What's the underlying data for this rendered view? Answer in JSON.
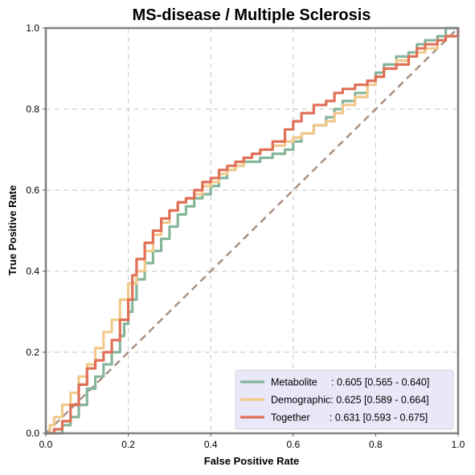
{
  "chart_data": {
    "type": "line",
    "title": "MS-disease / Multiple Sclerosis",
    "xlabel": "False Positive Rate",
    "ylabel": "True Positive Rate",
    "xlim": [
      0,
      1
    ],
    "ylim": [
      0,
      1
    ],
    "xticks": [
      "0.0",
      "0.2",
      "0.4",
      "0.6",
      "0.8",
      "1.0"
    ],
    "yticks": [
      "0.0",
      "0.2",
      "0.4",
      "0.6",
      "0.8",
      "1.0"
    ],
    "grid": true,
    "legend_position": "lower-right",
    "legend_bg": "#e8e8f8",
    "diagonal": {
      "x": [
        0,
        1
      ],
      "y": [
        0,
        1
      ],
      "style": "dashed",
      "color": "#a89080"
    },
    "series": [
      {
        "name": "Metabolite",
        "legend": "Metabolite     : 0.605 [0.565 - 0.640]",
        "color": "#85b59a",
        "x": [
          0.0,
          0.03,
          0.04,
          0.06,
          0.08,
          0.1,
          0.12,
          0.14,
          0.16,
          0.18,
          0.19,
          0.2,
          0.21,
          0.22,
          0.24,
          0.26,
          0.28,
          0.3,
          0.32,
          0.34,
          0.36,
          0.38,
          0.4,
          0.42,
          0.44,
          0.46,
          0.48,
          0.5,
          0.52,
          0.55,
          0.58,
          0.6,
          0.62,
          0.65,
          0.68,
          0.7,
          0.72,
          0.75,
          0.78,
          0.8,
          0.82,
          0.85,
          0.88,
          0.9,
          0.92,
          0.95,
          0.97,
          1.0
        ],
        "y": [
          0.0,
          0.0,
          0.02,
          0.04,
          0.07,
          0.11,
          0.14,
          0.17,
          0.2,
          0.24,
          0.27,
          0.3,
          0.33,
          0.38,
          0.42,
          0.45,
          0.48,
          0.51,
          0.54,
          0.56,
          0.58,
          0.59,
          0.61,
          0.63,
          0.65,
          0.66,
          0.67,
          0.67,
          0.68,
          0.69,
          0.7,
          0.72,
          0.74,
          0.76,
          0.78,
          0.8,
          0.82,
          0.84,
          0.87,
          0.89,
          0.91,
          0.93,
          0.94,
          0.96,
          0.97,
          0.98,
          1.0,
          1.0
        ]
      },
      {
        "name": "Demographic",
        "legend": "Demographic: 0.625 [0.589 - 0.664]",
        "color": "#f2c98a",
        "x": [
          0.0,
          0.01,
          0.02,
          0.04,
          0.06,
          0.08,
          0.1,
          0.12,
          0.14,
          0.16,
          0.18,
          0.2,
          0.22,
          0.24,
          0.26,
          0.28,
          0.3,
          0.32,
          0.34,
          0.36,
          0.38,
          0.4,
          0.42,
          0.44,
          0.46,
          0.48,
          0.5,
          0.52,
          0.55,
          0.58,
          0.6,
          0.62,
          0.65,
          0.68,
          0.7,
          0.72,
          0.75,
          0.78,
          0.8,
          0.82,
          0.85,
          0.88,
          0.9,
          0.92,
          0.95,
          0.97,
          1.0
        ],
        "y": [
          0.0,
          0.02,
          0.04,
          0.07,
          0.1,
          0.14,
          0.17,
          0.21,
          0.25,
          0.28,
          0.33,
          0.37,
          0.4,
          0.45,
          0.49,
          0.52,
          0.55,
          0.57,
          0.58,
          0.59,
          0.61,
          0.62,
          0.64,
          0.65,
          0.66,
          0.68,
          0.69,
          0.7,
          0.71,
          0.72,
          0.73,
          0.74,
          0.76,
          0.77,
          0.79,
          0.81,
          0.83,
          0.86,
          0.88,
          0.9,
          0.92,
          0.93,
          0.94,
          0.95,
          0.97,
          0.98,
          1.0
        ]
      },
      {
        "name": "Together",
        "legend": "Together       : 0.631 [0.593 - 0.675]",
        "color": "#e07058",
        "x": [
          0.0,
          0.02,
          0.04,
          0.06,
          0.08,
          0.1,
          0.12,
          0.14,
          0.16,
          0.18,
          0.2,
          0.21,
          0.22,
          0.24,
          0.26,
          0.28,
          0.3,
          0.32,
          0.34,
          0.36,
          0.38,
          0.4,
          0.42,
          0.44,
          0.46,
          0.48,
          0.5,
          0.52,
          0.55,
          0.58,
          0.6,
          0.62,
          0.65,
          0.68,
          0.7,
          0.72,
          0.75,
          0.78,
          0.8,
          0.82,
          0.85,
          0.88,
          0.9,
          0.92,
          0.95,
          0.97,
          1.0
        ],
        "y": [
          0.0,
          0.01,
          0.03,
          0.07,
          0.12,
          0.16,
          0.18,
          0.2,
          0.23,
          0.28,
          0.33,
          0.39,
          0.43,
          0.47,
          0.5,
          0.53,
          0.55,
          0.57,
          0.58,
          0.6,
          0.62,
          0.63,
          0.65,
          0.66,
          0.67,
          0.68,
          0.69,
          0.7,
          0.72,
          0.75,
          0.77,
          0.79,
          0.81,
          0.82,
          0.84,
          0.85,
          0.86,
          0.87,
          0.88,
          0.9,
          0.91,
          0.93,
          0.95,
          0.96,
          0.97,
          0.98,
          1.0
        ]
      }
    ]
  }
}
